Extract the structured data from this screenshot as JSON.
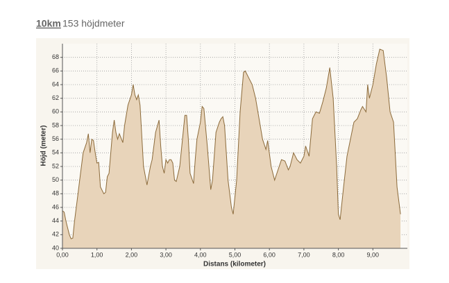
{
  "header": {
    "distance": "10km",
    "climb": "153 höjdmeter"
  },
  "chart_data": {
    "type": "area",
    "xlabel": "Distans (kilometer)",
    "ylabel": "Höjd (meter)",
    "color": "#8b6a3a",
    "fill": "#e8d4ba",
    "grid": true,
    "xlim": [
      0,
      10
    ],
    "ylim": [
      40,
      70
    ],
    "xticks": [
      {
        "value": 0,
        "label": "0,00"
      },
      {
        "value": 1,
        "label": "1,00"
      },
      {
        "value": 2,
        "label": "2,00"
      },
      {
        "value": 3,
        "label": "3,00"
      },
      {
        "value": 4,
        "label": "4,00"
      },
      {
        "value": 5,
        "label": "5,00"
      },
      {
        "value": 6,
        "label": "6,00"
      },
      {
        "value": 7,
        "label": "7,00"
      },
      {
        "value": 8,
        "label": "8,00"
      },
      {
        "value": 9,
        "label": "9,00"
      }
    ],
    "yticks": [
      40,
      42,
      44,
      46,
      48,
      50,
      52,
      54,
      56,
      58,
      60,
      62,
      64,
      66,
      68
    ],
    "x": [
      0,
      0.05,
      0.1,
      0.2,
      0.25,
      0.3,
      0.35,
      0.45,
      0.5,
      0.6,
      0.7,
      0.75,
      0.8,
      0.85,
      0.9,
      0.95,
      1.0,
      1.05,
      1.1,
      1.2,
      1.25,
      1.3,
      1.35,
      1.45,
      1.5,
      1.55,
      1.6,
      1.65,
      1.75,
      1.8,
      1.9,
      2.0,
      2.05,
      2.1,
      2.15,
      2.2,
      2.25,
      2.35,
      2.45,
      2.55,
      2.6,
      2.7,
      2.8,
      2.85,
      2.9,
      2.95,
      3.0,
      3.05,
      3.1,
      3.15,
      3.2,
      3.25,
      3.3,
      3.4,
      3.55,
      3.6,
      3.65,
      3.7,
      3.8,
      3.85,
      3.9,
      4.0,
      4.05,
      4.1,
      4.2,
      4.3,
      4.35,
      4.45,
      4.55,
      4.6,
      4.65,
      4.7,
      4.8,
      4.9,
      4.95,
      5.05,
      5.15,
      5.25,
      5.3,
      5.4,
      5.5,
      5.6,
      5.7,
      5.8,
      5.9,
      5.95,
      6.05,
      6.15,
      6.25,
      6.35,
      6.45,
      6.55,
      6.6,
      6.7,
      6.8,
      6.9,
      7.0,
      7.05,
      7.15,
      7.25,
      7.35,
      7.45,
      7.55,
      7.65,
      7.75,
      7.85,
      7.95,
      8.0,
      8.05,
      8.15,
      8.25,
      8.35,
      8.45,
      8.55,
      8.65,
      8.7,
      8.8,
      8.85,
      8.9,
      9.0,
      9.1,
      9.2,
      9.3,
      9.4,
      9.5,
      9.6,
      9.7,
      9.8
    ],
    "values": [
      45.5,
      45.3,
      44,
      42,
      41.4,
      41.5,
      44,
      48,
      50,
      54,
      55.5,
      56.8,
      54,
      56,
      55.8,
      54,
      52.5,
      52.6,
      49,
      48,
      48.2,
      50.5,
      51,
      57,
      58.8,
      57,
      56,
      56.8,
      55.5,
      58,
      61,
      62.5,
      64,
      62.5,
      61.8,
      62.5,
      61,
      52,
      49.3,
      52,
      53,
      57,
      58.8,
      55,
      52,
      51,
      53,
      52.5,
      53,
      53,
      52.5,
      50,
      49.8,
      52,
      59.5,
      59.5,
      56,
      51,
      49.5,
      53,
      56,
      58.5,
      60.8,
      60.5,
      55,
      48.6,
      50,
      57,
      58.5,
      59,
      59.3,
      58,
      50,
      46,
      45,
      50,
      60,
      65.8,
      66,
      65,
      64,
      62,
      59,
      56,
      54.5,
      55.8,
      52,
      50,
      51.5,
      53,
      52.8,
      51.5,
      52,
      54,
      53,
      52.5,
      53.5,
      55,
      53.5,
      59,
      60,
      59.8,
      61.5,
      63.5,
      66.5,
      62,
      52,
      45,
      44.2,
      49,
      53.5,
      56,
      58.5,
      59,
      60.3,
      60.8,
      60,
      64,
      62,
      64,
      67,
      69.2,
      69,
      65,
      60,
      58.5,
      49,
      45
    ]
  }
}
